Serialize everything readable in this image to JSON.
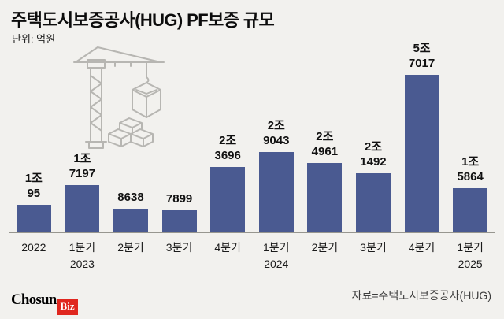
{
  "header": {
    "title": "주택도시보증공사(HUG) PF보증 규모",
    "unit": "단위: 억원"
  },
  "chart_data": {
    "type": "bar",
    "title": "주택도시보증공사(HUG) PF보증 규모",
    "unit_label": "단위: 억원",
    "ylabel": "억원",
    "ylim": [
      0,
      57017
    ],
    "max_value": 57017,
    "bar_color": "#4a5a91",
    "grid": false,
    "legend": "none",
    "bars": [
      {
        "category_lines": [
          "2022"
        ],
        "label_lines": [
          "1조",
          "95"
        ],
        "value": 10095
      },
      {
        "category_lines": [
          "1분기",
          "2023"
        ],
        "label_lines": [
          "1조",
          "7197"
        ],
        "value": 17197
      },
      {
        "category_lines": [
          "2분기"
        ],
        "label_lines": [
          "8638"
        ],
        "value": 8638
      },
      {
        "category_lines": [
          "3분기"
        ],
        "label_lines": [
          "7899"
        ],
        "value": 7899
      },
      {
        "category_lines": [
          "4분기"
        ],
        "label_lines": [
          "2조",
          "3696"
        ],
        "value": 23696
      },
      {
        "category_lines": [
          "1분기",
          "2024"
        ],
        "label_lines": [
          "2조",
          "9043"
        ],
        "value": 29043
      },
      {
        "category_lines": [
          "2분기"
        ],
        "label_lines": [
          "2조",
          "4961"
        ],
        "value": 24961
      },
      {
        "category_lines": [
          "3분기"
        ],
        "label_lines": [
          "2조",
          "1492"
        ],
        "value": 21492
      },
      {
        "category_lines": [
          "4분기"
        ],
        "label_lines": [
          "5조",
          "7017"
        ],
        "value": 57017
      },
      {
        "category_lines": [
          "1분기",
          "2025"
        ],
        "label_lines": [
          "1조",
          "5864"
        ],
        "value": 15864
      }
    ]
  },
  "footer": {
    "logo_text_main": "Chosun",
    "logo_text_accent": "Biz",
    "source": "자료=주택도시보증공사(HUG)"
  }
}
